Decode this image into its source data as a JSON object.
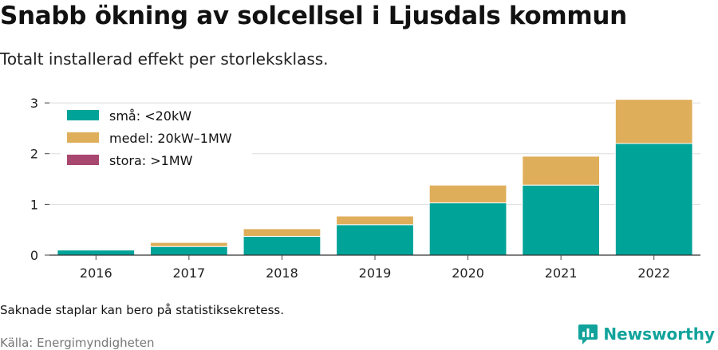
{
  "title": "Snabb ökning av solcellsel i Ljusdals kommun",
  "subtitle": "Totalt installerad effekt per storleksklass.",
  "note": "Saknade staplar kan bero på statistiksekretess.",
  "source": "Källa: Energimyndigheten",
  "brand": {
    "name": "Newsworthy",
    "icon": "newsworthy-logo-icon",
    "color": "#11a39b"
  },
  "chart_data": {
    "type": "bar",
    "stacked": true,
    "categories": [
      "2016",
      "2017",
      "2018",
      "2019",
      "2020",
      "2021",
      "2022"
    ],
    "series": [
      {
        "name": "små: <20kW",
        "color": "#00a398",
        "values": [
          0.1,
          0.17,
          0.37,
          0.6,
          1.03,
          1.38,
          2.2
        ]
      },
      {
        "name": "medel: 20kW–1MW",
        "color": "#dfae5a",
        "values": [
          0.0,
          0.08,
          0.15,
          0.17,
          0.35,
          0.57,
          0.87
        ]
      },
      {
        "name": "stora: >1MW",
        "color": "#a8476f",
        "values": [
          0,
          0,
          0,
          0,
          0,
          0,
          0
        ]
      }
    ],
    "ylim": [
      0,
      3.3
    ],
    "yticks": [
      0,
      1,
      2,
      3
    ],
    "grid": true,
    "legend_position": "top-left",
    "xlabel": "",
    "ylabel": ""
  }
}
